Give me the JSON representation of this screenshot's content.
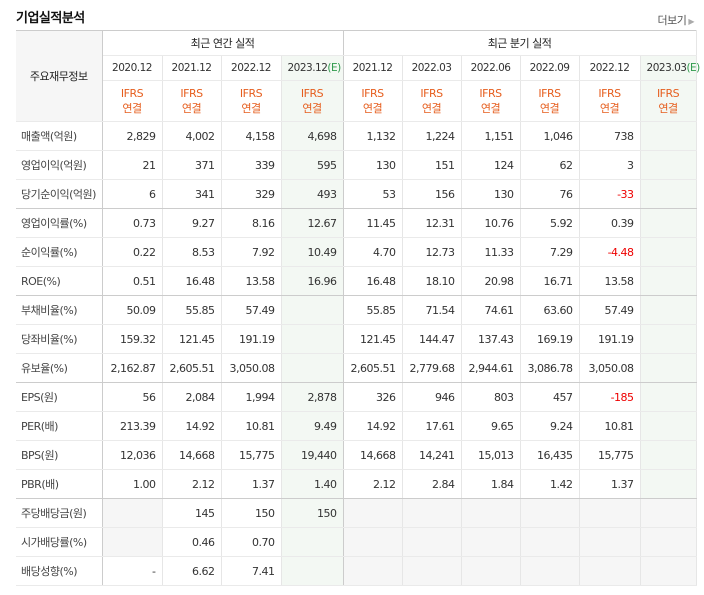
{
  "title": "기업실적분석",
  "more_label": "더보기",
  "header": {
    "row_label": "주요재무정보",
    "annual_label": "최근 연간 실적",
    "quarter_label": "최근 분기 실적",
    "periods": [
      {
        "date": "2020.12",
        "est": ""
      },
      {
        "date": "2021.12",
        "est": ""
      },
      {
        "date": "2022.12",
        "est": ""
      },
      {
        "date": "2023.12",
        "est": "(E)"
      },
      {
        "date": "2021.12",
        "est": ""
      },
      {
        "date": "2022.03",
        "est": ""
      },
      {
        "date": "2022.06",
        "est": ""
      },
      {
        "date": "2022.09",
        "est": ""
      },
      {
        "date": "2022.12",
        "est": ""
      },
      {
        "date": "2023.03",
        "est": "(E)"
      }
    ],
    "standard_line1": "IFRS",
    "standard_line2": "연결"
  },
  "rows": [
    {
      "label": "매출액(억원)",
      "values": [
        "2,829",
        "4,002",
        "4,158",
        "4,698",
        "1,132",
        "1,224",
        "1,151",
        "1,046",
        "738",
        ""
      ]
    },
    {
      "label": "영업이익(억원)",
      "values": [
        "21",
        "371",
        "339",
        "595",
        "130",
        "151",
        "124",
        "62",
        "3",
        ""
      ]
    },
    {
      "label": "당기순이익(억원)",
      "values": [
        "6",
        "341",
        "329",
        "493",
        "53",
        "156",
        "130",
        "76",
        "-33",
        ""
      ]
    },
    {
      "label": "영업이익률(%)",
      "values": [
        "0.73",
        "9.27",
        "8.16",
        "12.67",
        "11.45",
        "12.31",
        "10.76",
        "5.92",
        "0.39",
        ""
      ]
    },
    {
      "label": "순이익률(%)",
      "values": [
        "0.22",
        "8.53",
        "7.92",
        "10.49",
        "4.70",
        "12.73",
        "11.33",
        "7.29",
        "-4.48",
        ""
      ]
    },
    {
      "label": "ROE(%)",
      "values": [
        "0.51",
        "16.48",
        "13.58",
        "16.96",
        "16.48",
        "18.10",
        "20.98",
        "16.71",
        "13.58",
        ""
      ]
    },
    {
      "label": "부채비율(%)",
      "values": [
        "50.09",
        "55.85",
        "57.49",
        "",
        "55.85",
        "71.54",
        "74.61",
        "63.60",
        "57.49",
        ""
      ]
    },
    {
      "label": "당좌비율(%)",
      "values": [
        "159.32",
        "121.45",
        "191.19",
        "",
        "121.45",
        "144.47",
        "137.43",
        "169.19",
        "191.19",
        ""
      ]
    },
    {
      "label": "유보율(%)",
      "values": [
        "2,162.87",
        "2,605.51",
        "3,050.08",
        "",
        "2,605.51",
        "2,779.68",
        "2,944.61",
        "3,086.78",
        "3,050.08",
        ""
      ]
    },
    {
      "label": "EPS(원)",
      "values": [
        "56",
        "2,084",
        "1,994",
        "2,878",
        "326",
        "946",
        "803",
        "457",
        "-185",
        ""
      ]
    },
    {
      "label": "PER(배)",
      "values": [
        "213.39",
        "14.92",
        "10.81",
        "9.49",
        "14.92",
        "17.61",
        "9.65",
        "9.24",
        "10.81",
        ""
      ]
    },
    {
      "label": "BPS(원)",
      "values": [
        "12,036",
        "14,668",
        "15,775",
        "19,440",
        "14,668",
        "14,241",
        "15,013",
        "16,435",
        "15,775",
        ""
      ]
    },
    {
      "label": "PBR(배)",
      "values": [
        "1.00",
        "2.12",
        "1.37",
        "1.40",
        "2.12",
        "2.84",
        "1.84",
        "1.42",
        "1.37",
        ""
      ]
    },
    {
      "label": "주당배당금(원)",
      "values": [
        "",
        "145",
        "150",
        "150",
        "",
        "",
        "",
        "",
        "",
        ""
      ]
    },
    {
      "label": "시가배당률(%)",
      "values": [
        "",
        "0.46",
        "0.70",
        "",
        "",
        "",
        "",
        "",
        "",
        ""
      ]
    },
    {
      "label": "배당성향(%)",
      "values": [
        "-",
        "6.62",
        "7.41",
        "",
        "",
        "",
        "",
        "",
        "",
        ""
      ]
    }
  ]
}
